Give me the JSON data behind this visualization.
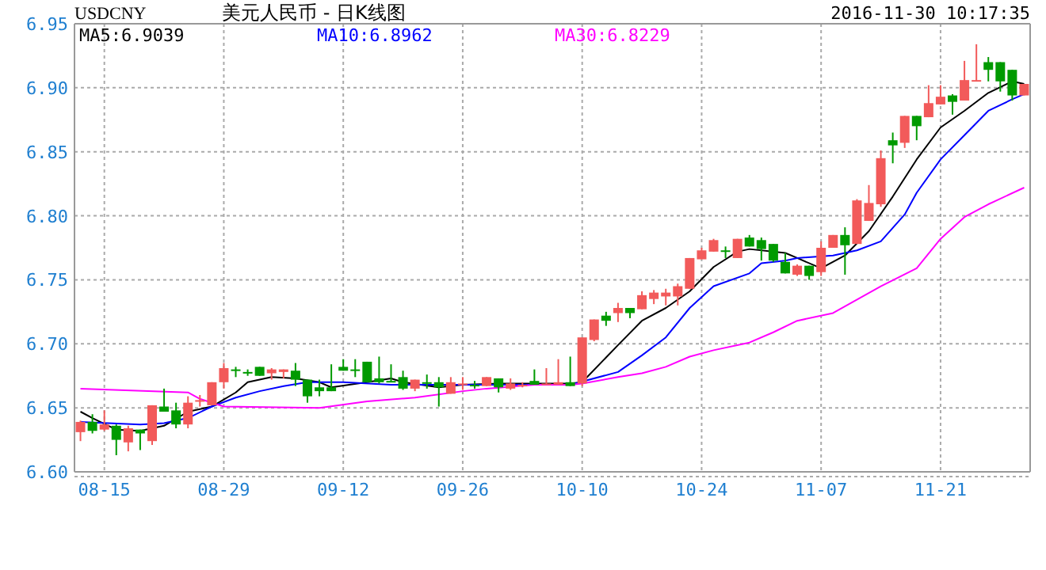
{
  "chart_data": {
    "type": "candlestick",
    "title": "美元人民币 - 日K线图",
    "annotations": [
      "USDCNY",
      "2016-11-30 10:17:35"
    ],
    "categories": [
      null,
      null,
      "08-15",
      null,
      null,
      null,
      null,
      null,
      null,
      null,
      null,
      null,
      "08-29",
      null,
      null,
      null,
      null,
      null,
      null,
      null,
      null,
      null,
      "09-12",
      null,
      null,
      null,
      null,
      null,
      null,
      null,
      null,
      null,
      "09-26",
      null,
      null,
      null,
      null,
      null,
      null,
      null,
      null,
      null,
      "10-10",
      null,
      null,
      null,
      null,
      null,
      null,
      null,
      null,
      null,
      "10-24",
      null,
      null,
      null,
      null,
      null,
      null,
      null,
      null,
      null,
      "11-07",
      null,
      null,
      null,
      null,
      null,
      null,
      null,
      null,
      null,
      "11-21",
      null,
      null,
      null,
      null,
      null,
      null,
      null
    ],
    "ohlc": [
      [
        6.631,
        6.64,
        6.624,
        6.639
      ],
      [
        6.639,
        6.645,
        6.63,
        6.632
      ],
      [
        6.633,
        6.648,
        6.632,
        6.637
      ],
      [
        6.636,
        6.637,
        6.613,
        6.625
      ],
      [
        6.623,
        6.636,
        6.616,
        6.634
      ],
      [
        6.633,
        6.633,
        6.617,
        6.63
      ],
      [
        6.624,
        6.652,
        6.621,
        6.652
      ],
      [
        6.651,
        6.665,
        6.647,
        6.647
      ],
      [
        6.648,
        6.654,
        6.634,
        6.637
      ],
      [
        6.637,
        6.659,
        6.634,
        6.654
      ],
      [
        6.655,
        6.66,
        6.651,
        6.656
      ],
      [
        6.652,
        6.67,
        6.652,
        6.67
      ],
      [
        6.67,
        6.685,
        6.665,
        6.681
      ],
      [
        6.68,
        6.682,
        6.674,
        6.679
      ],
      [
        6.678,
        6.68,
        6.675,
        6.677
      ],
      [
        6.682,
        6.682,
        6.675,
        6.675
      ],
      [
        6.677,
        6.681,
        6.672,
        6.68
      ],
      [
        6.678,
        6.68,
        6.673,
        6.68
      ],
      [
        6.679,
        6.685,
        6.667,
        6.672
      ],
      [
        6.672,
        6.672,
        6.654,
        6.659
      ],
      [
        6.666,
        6.672,
        6.659,
        6.663
      ],
      [
        6.666,
        6.684,
        6.663,
        6.663
      ],
      [
        6.682,
        6.688,
        6.679,
        6.679
      ],
      [
        6.68,
        6.688,
        6.674,
        6.679
      ],
      [
        6.686,
        6.686,
        6.67,
        6.67
      ],
      [
        6.673,
        6.69,
        6.669,
        6.67
      ],
      [
        6.671,
        6.684,
        6.67,
        6.67
      ],
      [
        6.674,
        6.679,
        6.664,
        6.665
      ],
      [
        6.665,
        6.672,
        6.663,
        6.672
      ],
      [
        6.67,
        6.676,
        6.665,
        6.669
      ],
      [
        6.67,
        6.674,
        6.651,
        6.666
      ],
      [
        6.661,
        6.674,
        6.661,
        6.67
      ],
      [
        6.668,
        6.674,
        6.664,
        6.669
      ],
      [
        6.668,
        6.671,
        6.665,
        6.667
      ],
      [
        6.667,
        6.674,
        6.667,
        6.674
      ],
      [
        6.673,
        6.673,
        6.662,
        6.666
      ],
      [
        6.665,
        6.673,
        6.664,
        6.669
      ],
      [
        6.668,
        6.67,
        6.666,
        6.668
      ],
      [
        6.671,
        6.68,
        6.668,
        6.668
      ],
      [
        6.668,
        6.681,
        6.668,
        6.669
      ],
      [
        6.668,
        6.688,
        6.668,
        6.67
      ],
      [
        6.67,
        6.69,
        6.667,
        6.667
      ],
      [
        6.669,
        6.705,
        6.667,
        6.705
      ],
      [
        6.703,
        6.719,
        6.702,
        6.719
      ],
      [
        6.722,
        6.725,
        6.714,
        6.718
      ],
      [
        6.724,
        6.732,
        6.717,
        6.728
      ],
      [
        6.728,
        6.728,
        6.72,
        6.724
      ],
      [
        6.727,
        6.741,
        6.727,
        6.738
      ],
      [
        6.735,
        6.742,
        6.731,
        6.74
      ],
      [
        6.737,
        6.743,
        6.73,
        6.74
      ],
      [
        6.737,
        6.747,
        6.73,
        6.745
      ],
      [
        6.743,
        6.767,
        6.743,
        6.767
      ],
      [
        6.766,
        6.775,
        6.766,
        6.773
      ],
      [
        6.772,
        6.782,
        6.772,
        6.781
      ],
      [
        6.773,
        6.776,
        6.767,
        6.772
      ],
      [
        6.767,
        6.782,
        6.767,
        6.782
      ],
      [
        6.783,
        6.785,
        6.776,
        6.776
      ],
      [
        6.781,
        6.783,
        6.765,
        6.774
      ],
      [
        6.778,
        6.778,
        6.764,
        6.765
      ],
      [
        6.764,
        6.771,
        6.755,
        6.755
      ],
      [
        6.754,
        6.762,
        6.753,
        6.761
      ],
      [
        6.761,
        6.761,
        6.75,
        6.753
      ],
      [
        6.756,
        6.78,
        6.753,
        6.775
      ],
      [
        6.775,
        6.785,
        6.775,
        6.785
      ],
      [
        6.785,
        6.791,
        6.754,
        6.777
      ],
      [
        6.778,
        6.813,
        6.778,
        6.812
      ],
      [
        6.796,
        6.824,
        6.796,
        6.81
      ],
      [
        6.809,
        6.851,
        6.807,
        6.845
      ],
      [
        6.859,
        6.865,
        6.841,
        6.855
      ],
      [
        6.857,
        6.878,
        6.853,
        6.878
      ],
      [
        6.878,
        6.878,
        6.859,
        6.87
      ],
      [
        6.877,
        6.902,
        6.877,
        6.888
      ],
      [
        6.887,
        6.902,
        6.887,
        6.893
      ],
      [
        6.894,
        6.895,
        6.879,
        6.889
      ],
      [
        6.89,
        6.921,
        6.89,
        6.906
      ],
      [
        6.905,
        6.934,
        6.905,
        6.906
      ],
      [
        6.92,
        6.924,
        6.905,
        6.914
      ],
      [
        6.92,
        6.92,
        6.897,
        6.905
      ],
      [
        6.914,
        6.914,
        6.89,
        6.894
      ],
      [
        6.894,
        6.903,
        6.894,
        6.903
      ]
    ],
    "colors": [
      "#f25a5a",
      "#009a00",
      "#f25a5a",
      "#009a00",
      "#f25a5a",
      "#009a00",
      "#f25a5a",
      "#009a00",
      "#009a00",
      "#f25a5a",
      "#f25a5a",
      "#f25a5a",
      "#f25a5a",
      "#009a00",
      "#009a00",
      "#009a00",
      "#f25a5a",
      "#f25a5a",
      "#009a00",
      "#009a00",
      "#009a00",
      "#009a00",
      "#009a00",
      "#009a00",
      "#009a00",
      "#009a00",
      "#009a00",
      "#009a00",
      "#f25a5a",
      "#009a00",
      "#009a00",
      "#f25a5a",
      "#f25a5a",
      "#009a00",
      "#f25a5a",
      "#009a00",
      "#f25a5a",
      "#f25a5a",
      "#009a00",
      "#f25a5a",
      "#f25a5a",
      "#009a00",
      "#f25a5a",
      "#f25a5a",
      "#009a00",
      "#f25a5a",
      "#009a00",
      "#f25a5a",
      "#f25a5a",
      "#f25a5a",
      "#f25a5a",
      "#f25a5a",
      "#f25a5a",
      "#f25a5a",
      "#009a00",
      "#f25a5a",
      "#009a00",
      "#009a00",
      "#009a00",
      "#009a00",
      "#f25a5a",
      "#009a00",
      "#f25a5a",
      "#f25a5a",
      "#009a00",
      "#f25a5a",
      "#f25a5a",
      "#f25a5a",
      "#009a00",
      "#f25a5a",
      "#009a00",
      "#f25a5a",
      "#f25a5a",
      "#009a00",
      "#f25a5a",
      "#f25a5a",
      "#009a00",
      "#009a00",
      "#009a00",
      "#f25a5a"
    ],
    "series": [
      {
        "type": "line",
        "name": "MA5:6.9039",
        "color": "#000000",
        "values": [
          6.647,
          6.642,
          null,
          6.633,
          null,
          6.632,
          null,
          6.636,
          null,
          6.647,
          null,
          6.651,
          null,
          6.662,
          6.67,
          null,
          6.674,
          null,
          6.673,
          null,
          6.67,
          6.666,
          null,
          null,
          6.67,
          null,
          6.673,
          6.67,
          null,
          null,
          6.666,
          null,
          6.668,
          null,
          null,
          6.669,
          null,
          null,
          6.669,
          null,
          null,
          6.669,
          6.67,
          null,
          null,
          6.699,
          null,
          6.718,
          null,
          6.728,
          null,
          6.741,
          null,
          6.76,
          null,
          6.772,
          6.774,
          null,
          null,
          6.771,
          6.767,
          null,
          6.759,
          null,
          6.769,
          null,
          6.788,
          null,
          6.815,
          null,
          6.844,
          null,
          6.869,
          null,
          6.882,
          null,
          6.896,
          null,
          6.905,
          6.903
        ]
      },
      {
        "type": "line",
        "name": "MA10:6.8962",
        "color": "#0000ff",
        "values": [
          6.639,
          null,
          null,
          null,
          null,
          6.637,
          null,
          6.638,
          null,
          6.642,
          null,
          6.651,
          null,
          6.658,
          null,
          6.663,
          null,
          6.667,
          null,
          6.67,
          null,
          null,
          6.67,
          null,
          null,
          null,
          6.668,
          null,
          null,
          null,
          null,
          6.668,
          null,
          null,
          null,
          null,
          6.668,
          null,
          null,
          null,
          null,
          6.668,
          null,
          null,
          null,
          6.678,
          null,
          6.691,
          null,
          6.705,
          null,
          6.728,
          null,
          6.745,
          null,
          null,
          6.755,
          6.763,
          null,
          6.765,
          6.767,
          null,
          null,
          6.769,
          null,
          6.773,
          null,
          6.78,
          null,
          6.801,
          6.818,
          null,
          6.844,
          null,
          6.863,
          null,
          6.882,
          null,
          6.891,
          6.895
        ]
      },
      {
        "type": "line",
        "name": "MA30:6.8229",
        "color": "#ff00ff",
        "values": [
          6.665,
          null,
          null,
          null,
          null,
          null,
          null,
          null,
          null,
          6.662,
          6.657,
          null,
          6.651,
          null,
          null,
          null,
          null,
          null,
          null,
          null,
          6.65,
          null,
          null,
          null,
          6.655,
          null,
          null,
          null,
          6.658,
          null,
          null,
          null,
          6.663,
          null,
          6.665,
          null,
          null,
          null,
          6.668,
          null,
          null,
          6.668,
          6.669,
          null,
          null,
          6.674,
          null,
          6.677,
          null,
          6.682,
          null,
          6.69,
          null,
          6.695,
          null,
          null,
          6.701,
          null,
          6.709,
          null,
          6.718,
          null,
          null,
          6.724,
          null,
          null,
          null,
          6.745,
          null,
          null,
          6.759,
          null,
          6.782,
          null,
          6.799,
          null,
          6.809,
          null,
          null,
          6.822
        ]
      }
    ],
    "ylim": [
      6.6,
      6.95
    ],
    "yticks": [
      {
        "value": 6.6,
        "label": "6.60"
      },
      {
        "value": 6.65,
        "label": "6.65"
      },
      {
        "value": 6.7,
        "label": "6.70"
      },
      {
        "value": 6.75,
        "label": "6.75"
      },
      {
        "value": 6.8,
        "label": "6.80"
      },
      {
        "value": 6.85,
        "label": "6.85"
      },
      {
        "value": 6.9,
        "label": "6.90"
      },
      {
        "value": 6.95,
        "label": "6.95"
      }
    ],
    "grid": true,
    "legend": "top left"
  }
}
